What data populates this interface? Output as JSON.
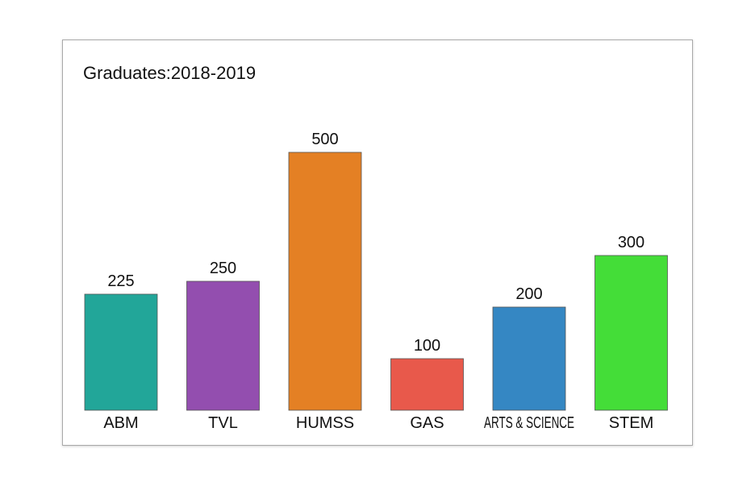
{
  "chart_data": {
    "type": "bar",
    "title": "Graduates:2018-2019",
    "xlabel": "",
    "ylabel": "",
    "ylim": [
      0,
      500
    ],
    "grid": false,
    "legend": "none",
    "categories": [
      "ABM",
      "TVL",
      "HUMSS",
      "GAS",
      "ARTS & SCIENCE",
      "STEM"
    ],
    "values": [
      225,
      250,
      500,
      100,
      200,
      300
    ],
    "colors": [
      "#22a699",
      "#934eaf",
      "#e48024",
      "#e8594b",
      "#3587c3",
      "#44dd38"
    ]
  }
}
